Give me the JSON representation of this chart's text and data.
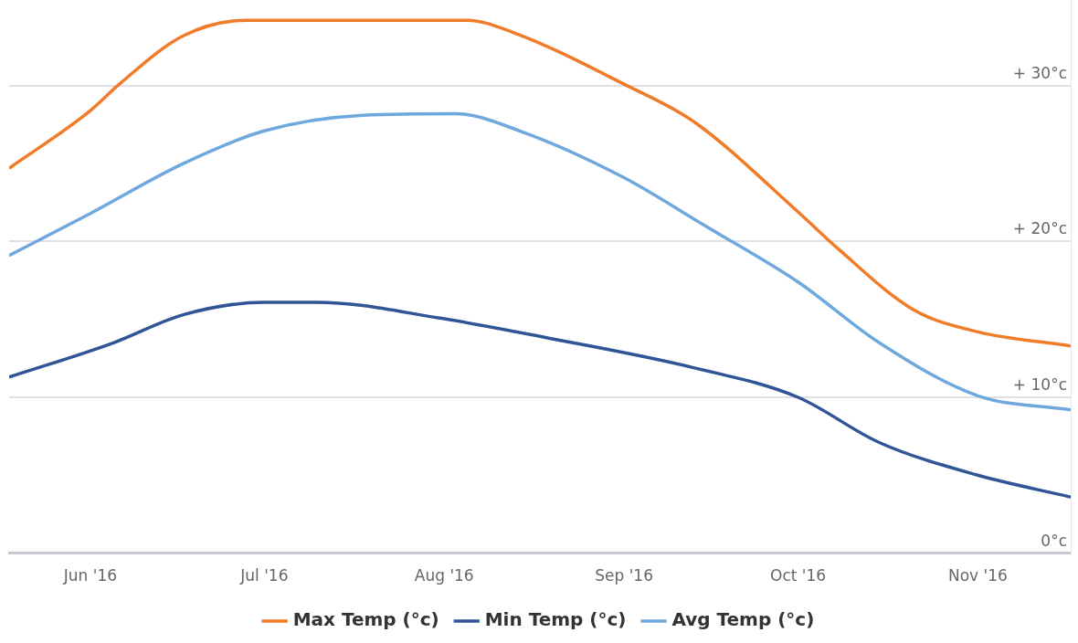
{
  "chart_data": {
    "type": "line",
    "xlim": [
      "2016-05-18",
      "2016-11-17"
    ],
    "xticks": [
      {
        "value": "2016-06-01",
        "label": "Jun '16"
      },
      {
        "value": "2016-07-01",
        "label": "Jul '16"
      },
      {
        "value": "2016-08-01",
        "label": "Aug '16"
      },
      {
        "value": "2016-09-01",
        "label": "Sep '16"
      },
      {
        "value": "2016-10-01",
        "label": "Oct '16"
      },
      {
        "value": "2016-11-01",
        "label": "Nov '16"
      }
    ],
    "ylim": [
      0,
      35.5
    ],
    "yticks": [
      {
        "value": 0,
        "label": "0°c"
      },
      {
        "value": 10,
        "label": "+ 10°c"
      },
      {
        "value": 20,
        "label": "+ 20°c"
      },
      {
        "value": 30,
        "label": "+ 30°c"
      }
    ],
    "grid": "y",
    "legend": "bottom",
    "marker": "none",
    "line_style": "solid",
    "series": [
      {
        "name": "Max Temp (°c)",
        "color": "#f07c2a",
        "x": [
          "2016-05-18",
          "2016-06-01",
          "2016-06-06",
          "2016-06-17",
          "2016-06-28",
          "2016-08-05",
          "2016-08-13",
          "2016-09-01",
          "2016-09-13",
          "2016-10-01",
          "2016-10-08",
          "2016-10-21",
          "2016-11-01",
          "2016-11-17"
        ],
        "values": [
          24.7,
          28.4,
          30.1,
          33.2,
          34.2,
          34.2,
          33.4,
          30.1,
          27.7,
          21.9,
          19.5,
          15.6,
          14.2,
          13.3
        ]
      },
      {
        "name": "Min Temp (°c)",
        "color": "#2f5597",
        "x": [
          "2016-05-18",
          "2016-06-05",
          "2016-06-17",
          "2016-07-01",
          "2016-07-10",
          "2016-07-31",
          "2016-08-19",
          "2016-09-13",
          "2016-10-01",
          "2016-10-15",
          "2016-11-01",
          "2016-11-17"
        ],
        "values": [
          11.3,
          13.5,
          15.3,
          16.1,
          16.1,
          15.1,
          13.8,
          11.9,
          10,
          7.1,
          5,
          3.6
        ]
      },
      {
        "name": "Avg Temp (°c)",
        "color": "#6fa8dc",
        "x": [
          "2016-05-18",
          "2016-06-01",
          "2016-06-17",
          "2016-07-01",
          "2016-07-18",
          "2016-08-03",
          "2016-08-14",
          "2016-09-01",
          "2016-09-15",
          "2016-10-01",
          "2016-10-15",
          "2016-11-01",
          "2016-11-17"
        ],
        "values": [
          19.1,
          21.8,
          25,
          27.1,
          28.1,
          28.2,
          27.1,
          24.1,
          21,
          17.4,
          13.5,
          10.1,
          9.2
        ]
      }
    ]
  }
}
